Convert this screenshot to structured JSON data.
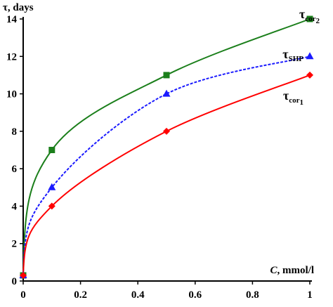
{
  "chart_data": {
    "type": "line",
    "title": "",
    "xlabel": {
      "var": "C",
      "rest": ", mmol/l"
    },
    "ylabel": "τ, days",
    "xlim": [
      0,
      1
    ],
    "ylim": [
      0,
      14
    ],
    "x_ticks": [
      0,
      0.2,
      0.4,
      0.6,
      0.8,
      1
    ],
    "x_tick_labels": [
      "0",
      "0.2",
      "0.4",
      "0.6",
      "0.8",
      "1"
    ],
    "y_ticks": [
      0,
      2,
      4,
      6,
      8,
      10,
      12,
      14
    ],
    "y_tick_labels": [
      "0",
      "2",
      "4",
      "6",
      "8",
      "10",
      "12",
      "14"
    ],
    "grid": false,
    "series": [
      {
        "name_main": "τ",
        "name_sub": "cor",
        "name_subsub": "2",
        "color": "#1b7f1b",
        "marker": "square",
        "dash": "solid",
        "x": [
          0,
          0.1,
          0.5,
          1
        ],
        "y": [
          0.3,
          7,
          11,
          14
        ]
      },
      {
        "name_main": "τ",
        "name_sub": "SHP",
        "name_subsub": "",
        "color": "#1a1aff",
        "marker": "triangle",
        "dash": "dashed",
        "x": [
          0,
          0.1,
          0.5,
          1
        ],
        "y": [
          0.3,
          5,
          10,
          12
        ]
      },
      {
        "name_main": "τ",
        "name_sub": "cor",
        "name_subsub": "1",
        "color": "#ff0000",
        "marker": "diamond",
        "dash": "solid",
        "x": [
          0,
          0.1,
          0.5,
          1
        ],
        "y": [
          0.3,
          4,
          8,
          11
        ]
      }
    ]
  }
}
